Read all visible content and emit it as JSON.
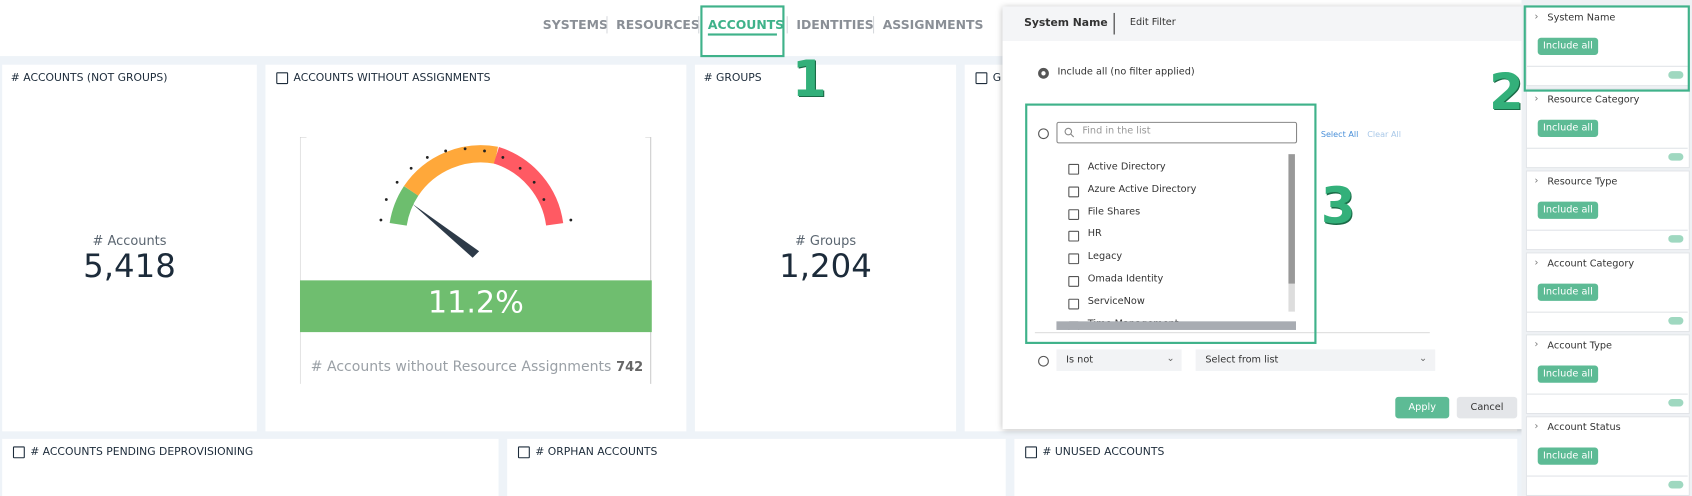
{
  "nav": {
    "tabs": [
      "SYSTEMS",
      "RESOURCES",
      "ACCOUNTS",
      "IDENTITIES",
      "ASSIGNMENTS"
    ],
    "active": "ACCOUNTS"
  },
  "annotations": [
    "1",
    "2",
    "3"
  ],
  "tiles": {
    "accounts": {
      "title": "# ACCOUNTS (NOT GROUPS)",
      "label": "# Accounts",
      "value": "5,418"
    },
    "without": {
      "title": "ACCOUNTS WITHOUT ASSIGNMENTS",
      "value": "11.2%",
      "footer": "# Accounts without Resource Assignments",
      "count": "742"
    },
    "groups": {
      "title": "# GROUPS",
      "label": "# Groups",
      "value": "1,204"
    },
    "hidden": {
      "title": "G"
    },
    "pending": {
      "title": "# ACCOUNTS PENDING DEPROVISIONING"
    },
    "orphan": {
      "title": "# ORPHAN ACCOUNTS"
    },
    "unused": {
      "title": "# UNUSED ACCOUNTS"
    }
  },
  "filter_panel": {
    "tabs": [
      "System Name",
      "Edit Filter"
    ],
    "include_all": "Include all (no filter applied)",
    "search_placeholder": "Find in the list",
    "select_all": "Select All",
    "clear_all": "Clear All",
    "items": [
      "Active Directory",
      "Azure Active Directory",
      "File Shares",
      "HR",
      "Legacy",
      "Omada Identity",
      "ServiceNow",
      "Time Management"
    ],
    "operator": "Is not",
    "select_from_list": "Select from list",
    "apply": "Apply",
    "cancel": "Cancel"
  },
  "sidebar": {
    "button": "Include all",
    "groups": [
      "System Name",
      "Resource Category",
      "Resource Type",
      "Account Category",
      "Account Type",
      "Account Status"
    ]
  }
}
